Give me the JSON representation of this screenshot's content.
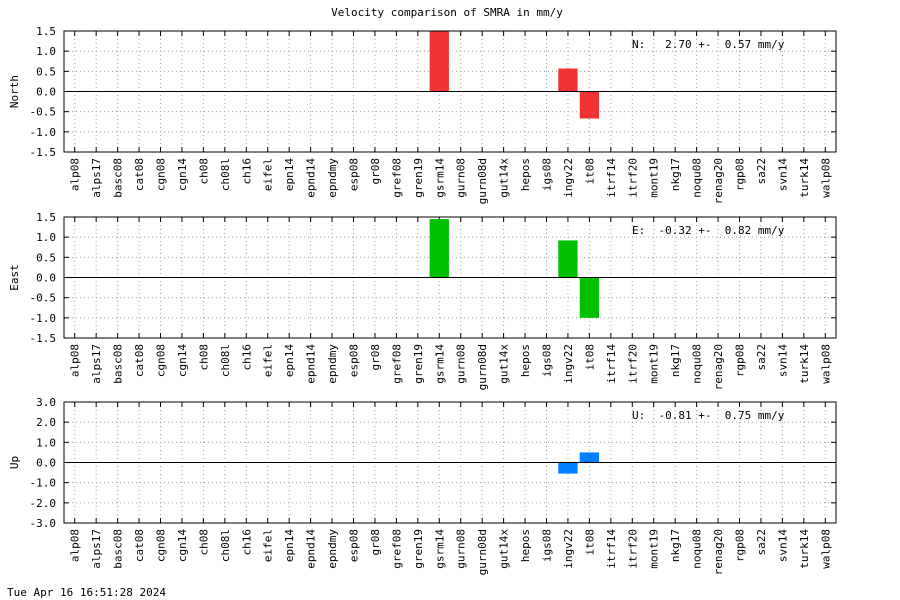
{
  "chart_data": {
    "title": "Velocity comparison of SMRA in mm/y",
    "footer": "Tue Apr 16 16:51:28 2024",
    "categories": [
      "alp08",
      "alps17",
      "basc08",
      "cat08",
      "cgn08",
      "cgn14",
      "ch08",
      "ch08l",
      "ch16",
      "eifel",
      "epn14",
      "epnd14",
      "epndmy",
      "esp08",
      "gr08",
      "gref08",
      "gren19",
      "gsrm14",
      "gurn08",
      "gurn08d",
      "gut14x",
      "hepos",
      "igs08",
      "ingv22",
      "it08",
      "itrf14",
      "itrf20",
      "mont19",
      "nkg17",
      "noqu08",
      "renag20",
      "rgp08",
      "sa22",
      "svn14",
      "turk14",
      "walp08"
    ],
    "panels": [
      {
        "type": "bar",
        "ylabel": "North",
        "ylim": [
          -1.5,
          1.5
        ],
        "yticks": [
          -1.5,
          -1.0,
          -0.5,
          0.0,
          0.5,
          1.0,
          1.5
        ],
        "tick_labels": [
          "-1.5",
          "-1.0",
          "-0.5",
          "0.0",
          "0.5",
          "1.0",
          "1.5"
        ],
        "color": "#f03232",
        "annotation": "N:   2.70 +-  0.57 mm/y",
        "bars": [
          {
            "category": "gsrm14",
            "value": 1.5
          },
          {
            "category": "ingv22",
            "value": 0.57
          },
          {
            "category": "it08",
            "value": -0.67
          }
        ]
      },
      {
        "type": "bar",
        "ylabel": "East",
        "ylim": [
          -1.5,
          1.5
        ],
        "yticks": [
          -1.5,
          -1.0,
          -0.5,
          0.0,
          0.5,
          1.0,
          1.5
        ],
        "tick_labels": [
          "-1.5",
          "-1.0",
          "-0.5",
          "0.0",
          "0.5",
          "1.0",
          "1.5"
        ],
        "color": "#00c000",
        "annotation": "E:  -0.32 +-  0.82 mm/y",
        "bars": [
          {
            "category": "gsrm14",
            "value": 1.45
          },
          {
            "category": "ingv22",
            "value": 0.92
          },
          {
            "category": "it08",
            "value": -1.0
          }
        ]
      },
      {
        "type": "bar",
        "ylabel": "Up",
        "ylim": [
          -3.0,
          3.0
        ],
        "yticks": [
          -3.0,
          -2.0,
          -1.0,
          0.0,
          1.0,
          2.0,
          3.0
        ],
        "tick_labels": [
          "-3.0",
          "-2.0",
          "-1.0",
          "0.0",
          "1.0",
          "2.0",
          "3.0"
        ],
        "color": "#0080ff",
        "annotation": "U:  -0.81 +-  0.75 mm/y",
        "bars": [
          {
            "category": "ingv22",
            "value": -0.55
          },
          {
            "category": "it08",
            "value": 0.5
          }
        ]
      }
    ]
  }
}
